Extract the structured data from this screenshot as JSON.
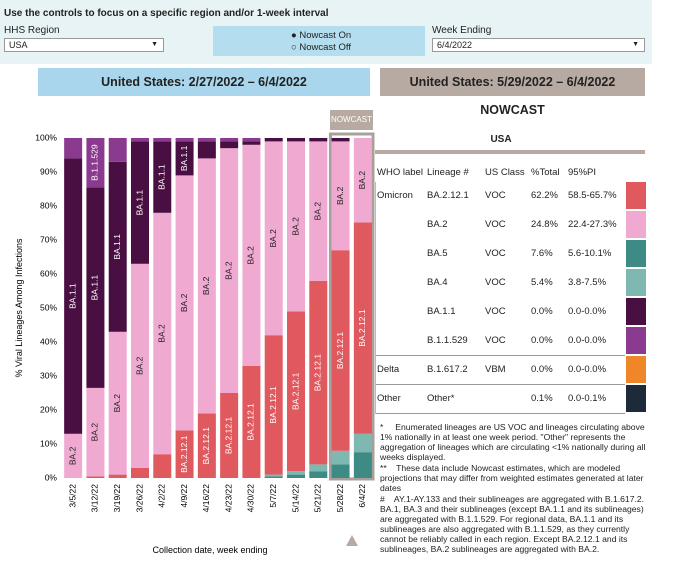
{
  "header": {
    "instruction": "Use the controls to focus on a specific region and/or 1-week interval",
    "region_label": "HHS Region",
    "region_value": "USA",
    "nowcast_on": "Nowcast On",
    "nowcast_off": "Nowcast Off",
    "week_label": "Week Ending",
    "week_value": "6/4/2022"
  },
  "panels": {
    "left_title": "United States: 2/27/2022 – 6/4/2022",
    "right_title": "United States: 5/29/2022 – 6/4/2022 NOWCAST",
    "nowcast_tag": "NOWCAST"
  },
  "chart_data": {
    "type": "stacked_bar",
    "y_label": "% Viral Lineages Among Infections",
    "x_label": "Collection date, week ending",
    "categories": [
      "3/5/22",
      "3/12/22",
      "3/19/22",
      "3/26/22",
      "4/2/22",
      "4/9/22",
      "4/16/22",
      "4/23/22",
      "4/30/22",
      "5/7/22",
      "5/14/22",
      "5/21/22",
      "5/28/22",
      "6/4/22"
    ],
    "series": [
      {
        "name": "BA.5",
        "color": "#3d8b84",
        "values": [
          0,
          0,
          0,
          0,
          0,
          0,
          0,
          0,
          0,
          0.5,
          1,
          2,
          4,
          7.6
        ]
      },
      {
        "name": "BA.4",
        "color": "#7fb8b0",
        "values": [
          0,
          0,
          0,
          0,
          0,
          0,
          0,
          0,
          0,
          0.5,
          1,
          2,
          4,
          5.4
        ]
      },
      {
        "name": "BA.2.12.1",
        "color": "#e0595e",
        "values": [
          0,
          0.5,
          1,
          3,
          7,
          14,
          19,
          25,
          33,
          41,
          47,
          54,
          59,
          62.2
        ]
      },
      {
        "name": "BA.2",
        "color": "#f0aad2",
        "values": [
          13,
          26,
          42,
          60,
          71,
          75,
          75,
          72,
          65,
          57,
          50,
          41,
          32,
          24.8
        ]
      },
      {
        "name": "BA.1.1",
        "color": "#4a0f42",
        "values": [
          81,
          59,
          50,
          36,
          21,
          10,
          5,
          2,
          1,
          1,
          1,
          1,
          1,
          0
        ]
      },
      {
        "name": "B.1.1.529",
        "color": "#8a3a8f",
        "values": [
          6,
          14.5,
          7,
          1,
          1,
          1,
          1,
          1,
          1,
          0,
          0,
          0,
          0,
          0
        ]
      }
    ],
    "ylim": [
      0,
      100
    ],
    "yticks": [
      {
        "value": 0,
        "label": "0%"
      },
      {
        "value": 10,
        "label": "10%"
      },
      {
        "value": 20,
        "label": "20%"
      },
      {
        "value": 30,
        "label": "30%"
      },
      {
        "value": 40,
        "label": "40%"
      },
      {
        "value": 50,
        "label": "50%"
      },
      {
        "value": 60,
        "label": "60%"
      },
      {
        "value": 70,
        "label": "70%"
      },
      {
        "value": 80,
        "label": "80%"
      },
      {
        "value": 90,
        "label": "90%"
      },
      {
        "value": 100,
        "label": "100%"
      }
    ]
  },
  "table": {
    "title": "USA",
    "columns": [
      "WHO label",
      "Lineage #",
      "US Class",
      "%Total",
      "95%PI"
    ],
    "rows": [
      [
        "Omicron",
        "BA.2.12.1",
        "VOC",
        "62.2%",
        "58.5-65.7%"
      ],
      [
        null,
        "BA.2",
        "VOC",
        "24.8%",
        "22.4-27.3%"
      ],
      [
        null,
        "BA.5",
        "VOC",
        "7.6%",
        "5.6-10.1%"
      ],
      [
        null,
        "BA.4",
        "VOC",
        "5.4%",
        "3.8-7.5%"
      ],
      [
        null,
        "BA.1.1",
        "VOC",
        "0.0%",
        "0.0-0.0%"
      ],
      [
        null,
        "B.1.1.529",
        "VOC",
        "0.0%",
        "0.0-0.0%"
      ],
      [
        "Delta",
        "B.1.617.2",
        "VBM",
        "0.0%",
        "0.0-0.0%"
      ],
      [
        "Other",
        "Other*",
        null,
        "0.1%",
        "0.0-0.1%"
      ]
    ],
    "colors": [
      "#e0595e",
      "#f0aad2",
      "#3d8b84",
      "#7fb8b0",
      "#4a0f42",
      "#8a3a8f",
      "#f0862a",
      "#1c2a3a"
    ]
  },
  "footnotes": [
    "*     Enumerated lineages are US VOC and lineages circulating above 1% nationally in at least one week period. \"Other\" represents the aggregation of lineages which are circulating <1% nationally during all weeks displayed.",
    "**    These data include Nowcast estimates, which are modeled projections that may differ from weighted estimates generated at later dates",
    "#    AY.1-AY.133 and their sublineages are aggregated with B.1.617.2. BA.1, BA.3 and their sublineages (except BA.1.1 and its sublineages) are aggregated with B.1.1.529. For regional data, BA.1.1 and its sublineages are also aggregated with B.1.1.529, as they currently cannot be reliably called in each region. Except BA.2.12.1 and its sublineages, BA.2 sublineages are aggregated with BA.2."
  ]
}
